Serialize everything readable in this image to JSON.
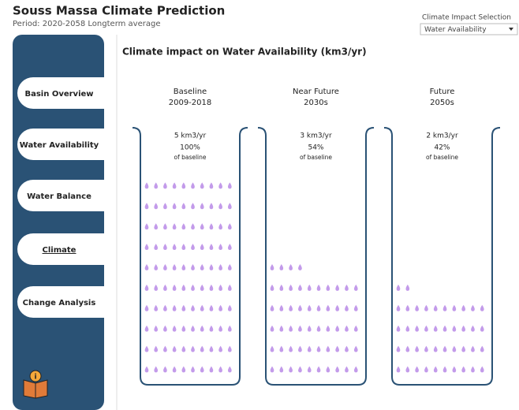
{
  "header": {
    "title": "Souss Massa Climate Prediction",
    "subtitle": "Period: 2020-2058 Longterm average"
  },
  "filter": {
    "label": "Climate Impact Selection",
    "value": "Water Availability"
  },
  "nav": [
    {
      "label": "Basin Overview"
    },
    {
      "label": "Water Availability"
    },
    {
      "label": "Water Balance"
    },
    {
      "label": "Climate"
    },
    {
      "label": "Change Analysis"
    }
  ],
  "chart_data": {
    "type": "pictogram",
    "title": "Climate impact on Water Availability (km3/yr)",
    "categories": [
      "Baseline",
      "Near Future",
      "Future"
    ],
    "periods": [
      "2009-2018",
      "2030s",
      "2050s"
    ],
    "values": [
      5,
      3,
      2
    ],
    "value_labels": [
      "5 km3/yr",
      "3 km3/yr",
      "2 km3/yr"
    ],
    "percent": [
      100,
      54,
      42
    ],
    "percent_labels": [
      "100%",
      "54%",
      "42%"
    ],
    "percent_note": "of baseline",
    "color": "#c39bea"
  }
}
